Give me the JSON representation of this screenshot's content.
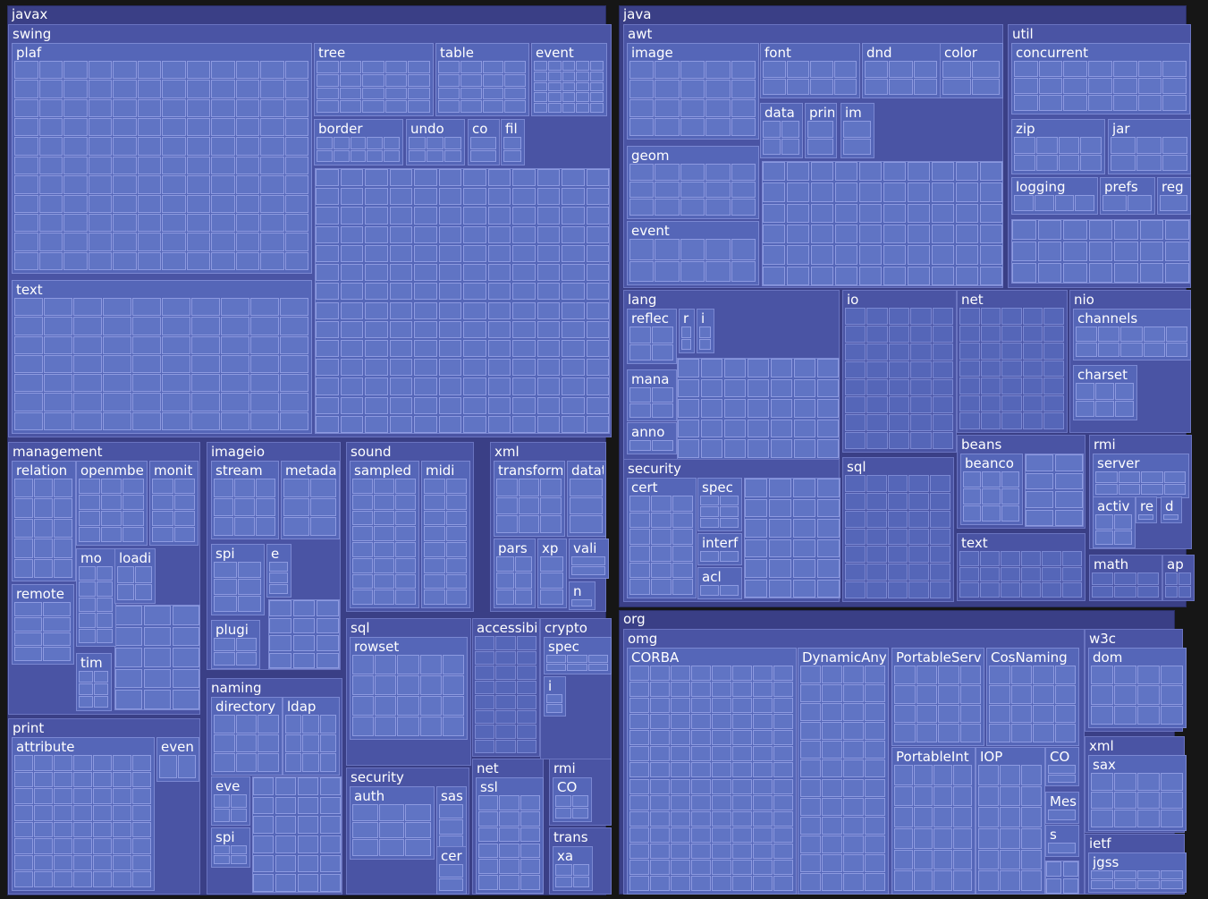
{
  "tree": [
    {
      "label": "javax",
      "children": [
        {
          "label": "swing",
          "children": [
            {
              "label": "plaf"
            },
            {
              "label": "tree"
            },
            {
              "label": "table"
            },
            {
              "label": "event"
            },
            {
              "label": "border"
            },
            {
              "label": "undo"
            },
            {
              "label": "co"
            },
            {
              "label": "fil"
            },
            {
              "label": "text"
            }
          ]
        },
        {
          "label": "management",
          "children": [
            {
              "label": "relation"
            },
            {
              "label": "openmbe"
            },
            {
              "label": "monit"
            },
            {
              "label": "mo"
            },
            {
              "label": "loadi"
            },
            {
              "label": "remote"
            },
            {
              "label": "tim"
            }
          ]
        },
        {
          "label": "imageio",
          "children": [
            {
              "label": "stream"
            },
            {
              "label": "metada"
            },
            {
              "label": "spi"
            },
            {
              "label": "e"
            },
            {
              "label": "plugi"
            }
          ]
        },
        {
          "label": "sound",
          "children": [
            {
              "label": "sampled"
            },
            {
              "label": "midi"
            }
          ]
        },
        {
          "label": "xml",
          "children": [
            {
              "label": "transform"
            },
            {
              "label": "datat"
            },
            {
              "label": "pars"
            },
            {
              "label": "xp"
            },
            {
              "label": "vali"
            },
            {
              "label": "n"
            }
          ]
        },
        {
          "label": "sql",
          "children": [
            {
              "label": "rowset"
            }
          ]
        },
        {
          "label": "accessibi"
        },
        {
          "label": "crypto",
          "children": [
            {
              "label": "spec"
            },
            {
              "label": "i"
            }
          ]
        },
        {
          "label": "naming",
          "children": [
            {
              "label": "directory"
            },
            {
              "label": "ldap"
            },
            {
              "label": "eve"
            },
            {
              "label": "spi"
            }
          ]
        },
        {
          "label": "security",
          "children": [
            {
              "label": "auth"
            },
            {
              "label": "sas"
            },
            {
              "label": "cer"
            }
          ]
        },
        {
          "label": "net",
          "children": [
            {
              "label": "ssl"
            }
          ]
        },
        {
          "label": "rmi",
          "children": [
            {
              "label": "CO"
            }
          ]
        },
        {
          "label": "trans",
          "children": [
            {
              "label": "xa"
            }
          ]
        },
        {
          "label": "print",
          "children": [
            {
              "label": "attribute"
            },
            {
              "label": "even"
            }
          ]
        }
      ]
    },
    {
      "label": "java",
      "children": [
        {
          "label": "awt",
          "children": [
            {
              "label": "image"
            },
            {
              "label": "font"
            },
            {
              "label": "dnd"
            },
            {
              "label": "color"
            },
            {
              "label": "data"
            },
            {
              "label": "prin"
            },
            {
              "label": "im"
            },
            {
              "label": "geom"
            },
            {
              "label": "event"
            }
          ]
        },
        {
          "label": "util",
          "children": [
            {
              "label": "concurrent"
            },
            {
              "label": "zip"
            },
            {
              "label": "jar"
            },
            {
              "label": "logging"
            },
            {
              "label": "prefs"
            },
            {
              "label": "reg"
            }
          ]
        },
        {
          "label": "lang",
          "children": [
            {
              "label": "reflec"
            },
            {
              "label": "r"
            },
            {
              "label": "i"
            },
            {
              "label": "mana"
            },
            {
              "label": "anno"
            }
          ]
        },
        {
          "label": "io"
        },
        {
          "label": "net"
        },
        {
          "label": "nio",
          "children": [
            {
              "label": "channels"
            },
            {
              "label": "charset"
            }
          ]
        },
        {
          "label": "security",
          "children": [
            {
              "label": "cert"
            },
            {
              "label": "spec"
            },
            {
              "label": "interf"
            },
            {
              "label": "acl"
            }
          ]
        },
        {
          "label": "sql"
        },
        {
          "label": "beans",
          "children": [
            {
              "label": "beanco"
            }
          ]
        },
        {
          "label": "rmi",
          "children": [
            {
              "label": "server"
            },
            {
              "label": "activ"
            },
            {
              "label": "re"
            },
            {
              "label": "d"
            }
          ]
        },
        {
          "label": "text"
        },
        {
          "label": "math"
        },
        {
          "label": "ap"
        }
      ]
    },
    {
      "label": "org",
      "children": [
        {
          "label": "omg",
          "children": [
            {
              "label": "CORBA"
            },
            {
              "label": "DynamicAny"
            },
            {
              "label": "PortableServ"
            },
            {
              "label": "CosNaming"
            },
            {
              "label": "PortableInt"
            },
            {
              "label": "IOP"
            },
            {
              "label": "CO"
            },
            {
              "label": "Mes"
            },
            {
              "label": "s"
            }
          ]
        },
        {
          "label": "w3c",
          "children": [
            {
              "label": "dom"
            }
          ]
        },
        {
          "label": "xml",
          "children": [
            {
              "label": "sax"
            }
          ]
        },
        {
          "label": "ietf",
          "children": [
            {
              "label": "jgss"
            }
          ]
        }
      ]
    }
  ]
}
